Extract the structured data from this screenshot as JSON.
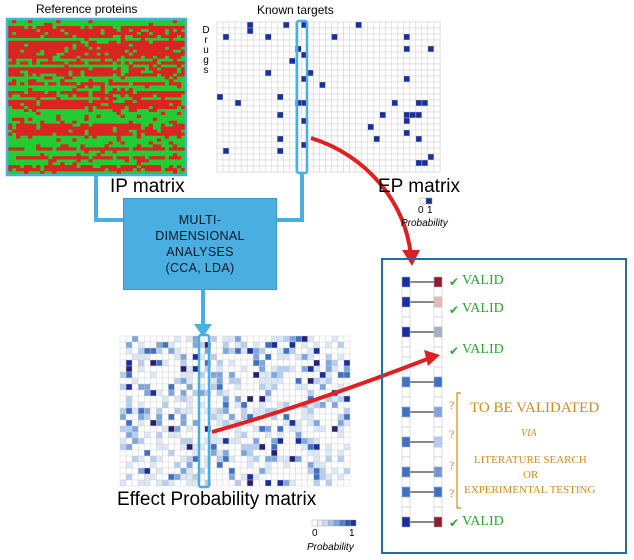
{
  "header": {
    "reference_proteins": "Reference proteins",
    "known_targets": "Known targets",
    "drugs_letters": [
      "D",
      "r",
      "u",
      "g",
      "s"
    ]
  },
  "ip_matrix": {
    "label": "IP matrix",
    "colors": {
      "green": "#22cc33",
      "red": "#dd2222"
    }
  },
  "ep_matrix": {
    "label": "EP matrix",
    "scale_ticks": [
      "0",
      "1"
    ],
    "scale_caption": "Probability",
    "colors": {
      "cell": "#1a2f9e",
      "grid": "#c8c8c8"
    }
  },
  "analyses_box": {
    "text": "MULTI-\nDIMENSIONAL\nANALYSES\n(CCA, LDA)"
  },
  "effect_matrix": {
    "label": "Effect Probability matrix",
    "scale_ticks": [
      "0",
      "1"
    ],
    "scale_caption": "Probability"
  },
  "validation": {
    "valid_label": "VALID",
    "question_mark": "?",
    "to_be_validated": "TO BE VALIDATED",
    "via": "VIA",
    "literature_search": "LITERATURE SEARCH",
    "or": "OR",
    "experimental_testing": "EXPERIMENTAL TESTING"
  },
  "colors": {
    "connector_blue": "#4aaee0",
    "arrow_red": "#e02020",
    "panel_border": "#1f6fa8",
    "valid_green": "#2aa830",
    "pending_orange": "#d48a1c"
  }
}
